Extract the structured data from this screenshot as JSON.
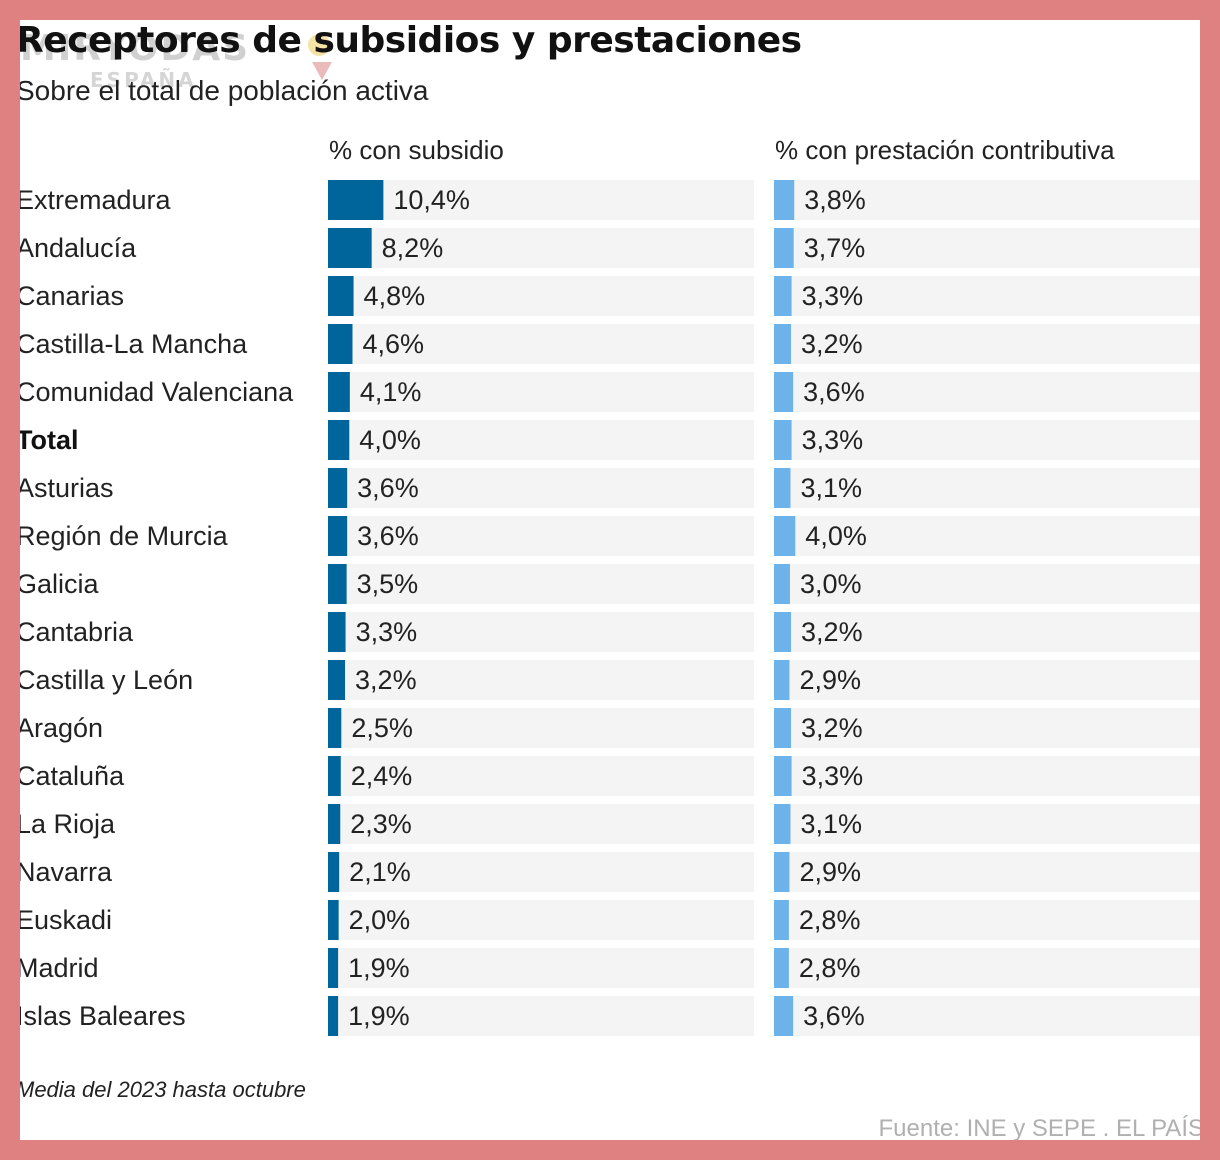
{
  "watermark": {
    "main": "MIRYODAS",
    "sub": "ESPAÑA"
  },
  "chart_data": {
    "type": "bar",
    "title": "Receptores de subsidios y prestaciones",
    "subtitle": "Sobre el total de población activa",
    "categories": [
      "Extremadura",
      "Andalucía",
      "Canarias",
      "Castilla-La Mancha",
      "Comunidad Valenciana",
      "Total",
      "Asturias",
      "Región de Murcia",
      "Galicia",
      "Cantabria",
      "Castilla y León",
      "Aragón",
      "Cataluña",
      "La Rioja",
      "Navarra",
      "Euskadi",
      "Madrid",
      "Islas Baleares"
    ],
    "highlight_category": "Total",
    "series": [
      {
        "name": "% con subsidio",
        "values": [
          10.4,
          8.2,
          4.8,
          4.6,
          4.1,
          4.0,
          3.6,
          3.6,
          3.5,
          3.3,
          3.2,
          2.5,
          2.4,
          2.3,
          2.1,
          2.0,
          1.9,
          1.9
        ],
        "labels": [
          "10,4%",
          "8,2%",
          "4,8%",
          "4,6%",
          "4,1%",
          "4,0%",
          "3,6%",
          "3,6%",
          "3,5%",
          "3,3%",
          "3,2%",
          "2,5%",
          "2,4%",
          "2,3%",
          "2,1%",
          "2,0%",
          "1,9%",
          "1,9%"
        ],
        "color": "#00659b"
      },
      {
        "name": "% con prestación contributiva",
        "values": [
          3.8,
          3.7,
          3.3,
          3.2,
          3.6,
          3.3,
          3.1,
          4.0,
          3.0,
          3.2,
          2.9,
          3.2,
          3.3,
          3.1,
          2.9,
          2.8,
          2.8,
          3.6
        ],
        "labels": [
          "3,8%",
          "3,7%",
          "3,3%",
          "3,2%",
          "3,6%",
          "3,3%",
          "3,1%",
          "4,0%",
          "3,0%",
          "3,2%",
          "2,9%",
          "3,2%",
          "3,3%",
          "3,1%",
          "2,9%",
          "2,8%",
          "2,8%",
          "3,6%"
        ],
        "color": "#6db3ea"
      }
    ],
    "xlim": [
      0,
      80
    ],
    "track_color": "#f4f4f4",
    "footnote": "Media del 2023 hasta octubre",
    "source": "Fuente: INE y SEPE . EL PAÍS"
  }
}
